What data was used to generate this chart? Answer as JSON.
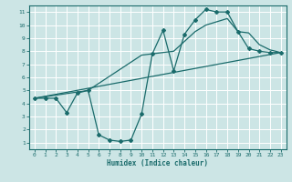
{
  "xlabel": "Humidex (Indice chaleur)",
  "xlim": [
    -0.5,
    23.5
  ],
  "ylim": [
    0.5,
    11.5
  ],
  "yticks": [
    1,
    2,
    3,
    4,
    5,
    6,
    7,
    8,
    9,
    10,
    11
  ],
  "xticks": [
    0,
    1,
    2,
    3,
    4,
    5,
    6,
    7,
    8,
    9,
    10,
    11,
    12,
    13,
    14,
    15,
    16,
    17,
    18,
    19,
    20,
    21,
    22,
    23
  ],
  "bg_color": "#cce5e5",
  "line_color": "#1a6b6b",
  "line1_x": [
    0,
    1,
    2,
    3,
    4,
    5,
    6,
    7,
    8,
    9,
    10,
    11,
    12,
    13,
    14,
    15,
    16,
    17,
    18,
    19,
    20,
    21,
    22,
    23
  ],
  "line1_y": [
    4.4,
    4.4,
    4.4,
    3.3,
    4.8,
    5.0,
    1.6,
    1.2,
    1.1,
    1.2,
    3.2,
    7.8,
    9.6,
    6.5,
    9.3,
    10.4,
    11.2,
    11.0,
    11.0,
    9.5,
    8.2,
    8.0,
    7.9,
    7.9
  ],
  "line2_x": [
    0,
    23
  ],
  "line2_y": [
    4.4,
    7.9
  ],
  "line3_x": [
    0,
    5,
    10,
    13,
    15,
    16,
    18,
    19,
    20,
    21,
    22,
    23
  ],
  "line3_y": [
    4.4,
    5.0,
    7.7,
    8.0,
    9.5,
    10.0,
    10.5,
    9.5,
    9.4,
    8.5,
    8.1,
    7.9
  ]
}
